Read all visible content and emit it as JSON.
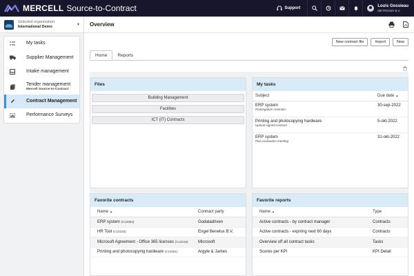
{
  "app": {
    "brand": "MERCELL",
    "product": "Source-to-Contract",
    "support_label": "Support",
    "user_name": "Louis Gossieau",
    "user_org": "METRONIX B.V.",
    "accent_color": "#3c8fd0",
    "topbar_color": "#17162d",
    "panel_header_color": "#d9ebf7"
  },
  "topbar_icons": [
    "search-icon",
    "history-icon",
    "mail-icon",
    "bell-icon"
  ],
  "org": {
    "label": "Selected organization:",
    "name": "International Demo"
  },
  "sidebar": {
    "items": [
      {
        "label": "My tasks",
        "sub": "",
        "icon": "tasks-icon",
        "active": false
      },
      {
        "label": "Supplier Management",
        "sub": "",
        "icon": "truck-icon",
        "active": false
      },
      {
        "label": "Intake management",
        "sub": "",
        "icon": "inbox-icon",
        "active": false
      },
      {
        "label": "Tender management",
        "sub": "Mercell Source-to-Contract",
        "icon": "documents-icon",
        "active": false
      },
      {
        "label": "Contract Management",
        "sub": "",
        "icon": "pen-icon",
        "active": true
      },
      {
        "label": "Performance Surveys",
        "sub": "",
        "icon": "chart-icon",
        "active": false
      }
    ]
  },
  "page": {
    "title": "Overview",
    "buttons": {
      "new_contract_file": "New contract file",
      "import": "Import",
      "new": "New"
    },
    "tabs": [
      {
        "label": "Home",
        "active": true
      },
      {
        "label": "Reports",
        "active": false
      }
    ]
  },
  "files": {
    "title": "Files",
    "items": [
      "Building Management",
      "Facilities",
      "ICT (IT) Contracts"
    ]
  },
  "my_tasks": {
    "title": "My tasks",
    "col_subject": "Subject",
    "col_due": "Due date",
    "rows": [
      {
        "subject": "ERP system",
        "note": "Prolongation reminder",
        "due": "30-sep-2022"
      },
      {
        "subject": "Printing and photocopying hardware",
        "note": "Upload signed contract",
        "due": "5-okt-2022"
      },
      {
        "subject": "ERP system",
        "note": "Plan evaluation meeting",
        "due": "31-okt-2022"
      }
    ]
  },
  "fav_contracts": {
    "title": "Favorite contracts",
    "col_name": "Name",
    "col_party": "Contract party",
    "rows": [
      {
        "name": "ERP system",
        "code": "(C10084)",
        "party": "Godatadriven"
      },
      {
        "name": "HR Tool",
        "code": "(C10230)",
        "party": "Engel Benelux B.V."
      },
      {
        "name": "Microsoft Agreement - Office 365 licenses",
        "code": "(C10219)",
        "party": "Microsoft"
      },
      {
        "name": "Printing and photocopying hardware",
        "code": "(C10251)",
        "party": "Argyle & James"
      }
    ]
  },
  "fav_reports": {
    "title": "Favorite reports",
    "col_name": "Name",
    "col_type": "Type",
    "rows": [
      {
        "name": "Active contracts - by contract manager",
        "type": "Contracts"
      },
      {
        "name": "Active contracts - expiring next 60 days",
        "type": "Contracts"
      },
      {
        "name": "Overview off all contract tasks",
        "type": "Tasks"
      },
      {
        "name": "Scores per KPI",
        "type": "KPI Detail"
      }
    ]
  }
}
